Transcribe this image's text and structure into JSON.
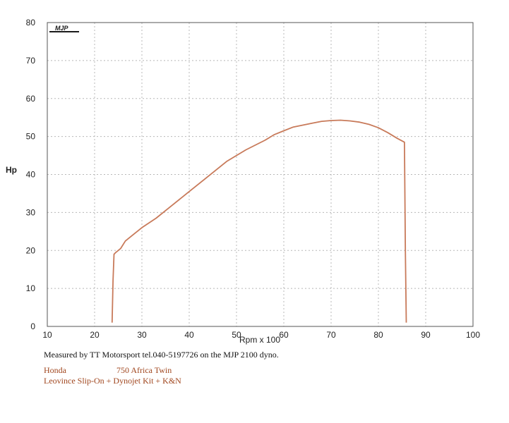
{
  "chart_data": {
    "type": "line",
    "title": "",
    "xlabel": "Rpm x 100",
    "ylabel": "Hp",
    "xlim": [
      10,
      100
    ],
    "ylim": [
      0,
      80
    ],
    "x_ticks": [
      10,
      20,
      30,
      40,
      50,
      60,
      70,
      80,
      90,
      100
    ],
    "y_ticks": [
      0,
      10,
      20,
      30,
      40,
      50,
      60,
      70,
      80
    ],
    "grid": true,
    "legend": "none",
    "series": [
      {
        "color": "#c87a5a",
        "x": [
          23.7,
          23.9,
          24.1,
          24.5,
          25.5,
          26.5,
          28,
          30,
          33,
          36,
          40,
          44,
          48,
          52,
          56,
          58,
          60,
          62,
          64,
          66,
          68,
          70,
          72,
          74,
          76,
          78,
          80,
          82,
          84,
          85.5,
          85.7,
          85.9
        ],
        "y": [
          1,
          12,
          19,
          19.5,
          20.5,
          22.5,
          24,
          26,
          28.5,
          31.5,
          35.5,
          39.5,
          43.5,
          46.5,
          49,
          50.5,
          51.5,
          52.5,
          53,
          53.5,
          54,
          54.2,
          54.3,
          54.1,
          53.8,
          53.2,
          52.3,
          51,
          49.5,
          48.5,
          20,
          1
        ]
      }
    ]
  },
  "logo": {
    "text": "MJP",
    "color": "#1a1a1a"
  },
  "captions": {
    "measured": "Measured by TT Motorsport tel.040-5197726 on the MJP 2100 dyno.",
    "make": "Honda",
    "model": "750 Africa Twin",
    "mods": "Leovince Slip-On + Dynojet Kit + K&N"
  }
}
